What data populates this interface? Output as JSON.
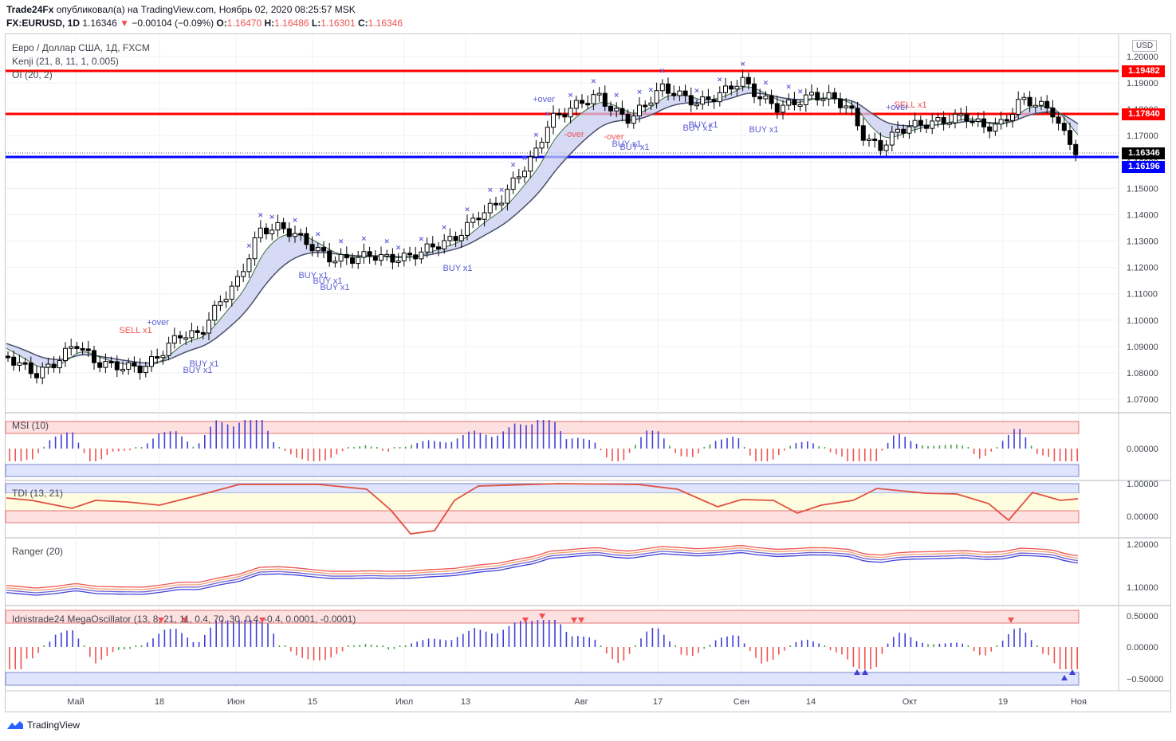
{
  "header": {
    "publisher": "Trade24Fx",
    "published_text": "опубликовал(а) на TradingView.com, Ноябрь 02, 2020 08:25:57 MSK",
    "symbol": "FX:EURUSD, 1D",
    "last": "1.16346",
    "change": "−0.00104 (−0.09%)",
    "o_label": "O:",
    "o": "1.16470",
    "h_label": "H:",
    "h": "1.16486",
    "l_label": "L:",
    "l": "1.16301",
    "c_label": "C:",
    "c": "1.16346"
  },
  "main": {
    "title": "Евро / Доллар США, 1Д, FXCM",
    "indicator1": "Kenji (21, 8, 11, 1, 0.005)",
    "indicator2": "OI (20, 2)",
    "currency": "USD",
    "price_axis": [
      "1.20000",
      "1.19000",
      "1.18000",
      "1.17000",
      "1.16000",
      "1.15000",
      "1.14000",
      "1.13000",
      "1.12000",
      "1.11000",
      "1.10000",
      "1.09000",
      "1.08000",
      "1.07000"
    ],
    "tags": {
      "r1": "1.19482",
      "r2": "1.17840",
      "last": "1.16346",
      "s1": "1.16196"
    },
    "signals": [
      "SELL x1",
      "+over",
      "BUY x1",
      "BUY x1",
      "BUY x1",
      "BUY x1",
      "BUY x1",
      "BUY x1",
      "+over",
      "-over",
      "-over",
      "BUY x1",
      "BUY x1",
      "BUY x1",
      "BUY x1",
      "BUY x1",
      "SELL x1",
      "+over"
    ]
  },
  "panes": {
    "msi": {
      "label": "MSI (10)",
      "axis": [
        "0.00000"
      ]
    },
    "tdi": {
      "label": "TDI (13, 21)",
      "axis": [
        "1.00000",
        "0.00000"
      ]
    },
    "ranger": {
      "label": "Ranger (20)",
      "axis": [
        "1.20000",
        "1.10000"
      ]
    },
    "mega": {
      "label": "Idnistrade24 MegaOscillator (13, 8, 21, 11, 0.4, 70, 30, 0.4, -0.4, 0.0001, -0.0001)",
      "axis": [
        "0.50000",
        "0.00000",
        "−0.50000"
      ]
    }
  },
  "time_axis": [
    "Май",
    "18",
    "Июн",
    "15",
    "Июл",
    "13",
    "Авг",
    "17",
    "Сен",
    "14",
    "Окт",
    "19",
    "Ноя"
  ],
  "footer": {
    "brand": "TradingView"
  },
  "colors": {
    "up": "#ffffff",
    "down": "#000000",
    "red": "#ff0000",
    "blue": "#0000ff",
    "purple": "#5b5bd6"
  }
}
